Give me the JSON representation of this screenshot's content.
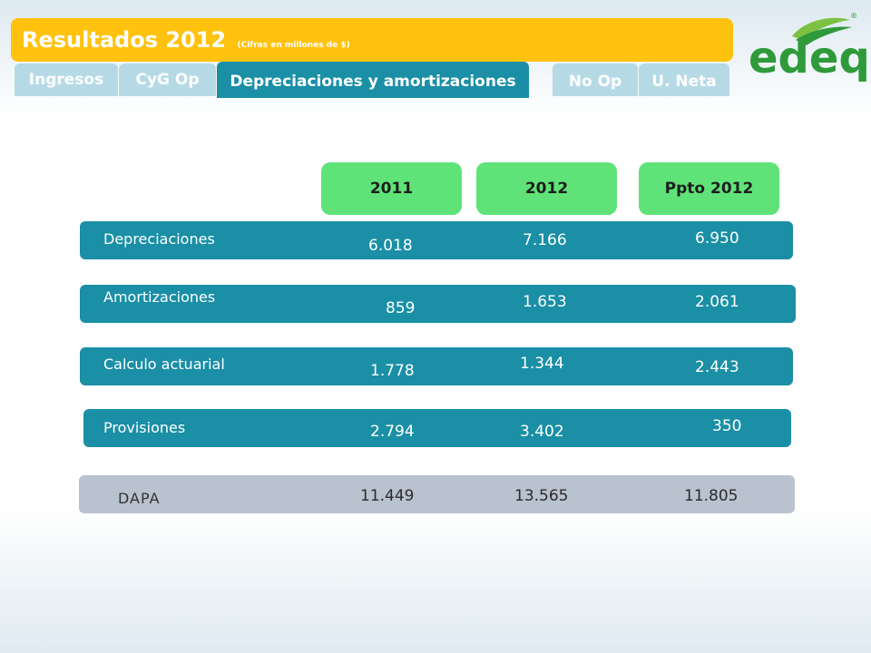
{
  "header": {
    "title": "Resultados 2012",
    "subtitle": "(Cifras en millones de $)"
  },
  "tabs": [
    {
      "label": "Ingresos",
      "active": false
    },
    {
      "label": "CyG Op",
      "active": false
    },
    {
      "label": "Depreciaciones  y amortizaciones",
      "active": true
    },
    {
      "label": "No Op",
      "active": false
    },
    {
      "label": "U. Neta",
      "active": false
    }
  ],
  "logo": {
    "text": "edeq",
    "registered": "®",
    "icon": "edeq-leaf-logo"
  },
  "columns": [
    "2011",
    "2012",
    "Ppto 2012"
  ],
  "rows": [
    {
      "label": "Depreciaciones",
      "values": [
        "6.018",
        "7.166",
        "6.950"
      ]
    },
    {
      "label": "Amortizaciones",
      "values": [
        "859",
        "1.653",
        "2.061"
      ]
    },
    {
      "label": "Calculo actuarial",
      "values": [
        "1.778",
        "1.344",
        "2.443"
      ]
    },
    {
      "label": "Provisiones",
      "values": [
        "2.794",
        "3.402",
        "350"
      ]
    }
  ],
  "total": {
    "label": "DAPA",
    "values": [
      "11.449",
      "13.565",
      "11.805"
    ]
  },
  "colors": {
    "title_bar": "#ffc20e",
    "tab_active": "#1a8fa6",
    "tab_inactive": "#b5dae6",
    "year_pill": "#5fe378",
    "row_bar": "#1a8fa6",
    "total_bar": "#b9c2cf",
    "logo_green": "#2e9a3a"
  }
}
